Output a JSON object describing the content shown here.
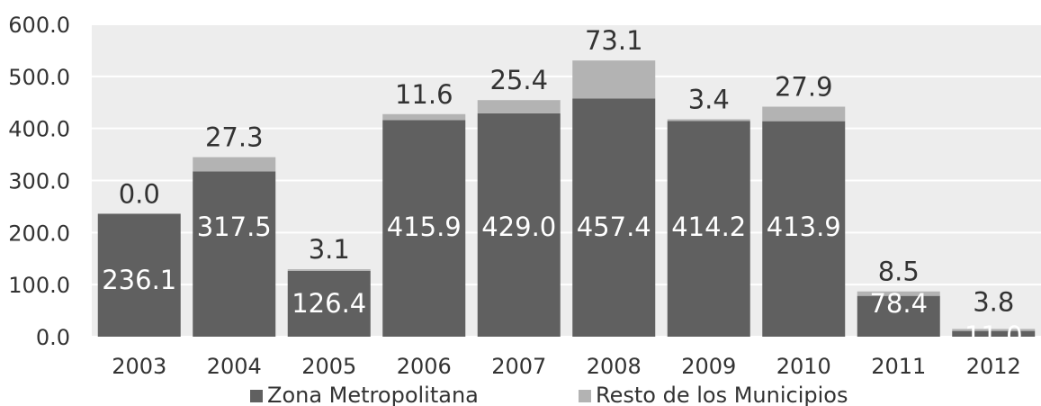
{
  "colors": {
    "plot_background": "#ededed",
    "series_zona": "#606060",
    "series_resto": "#b3b3b3",
    "grid": "#ffffff",
    "text": "#333333"
  },
  "chart_data": {
    "type": "bar",
    "stacked": true,
    "categories": [
      "2003",
      "2004",
      "2005",
      "2006",
      "2007",
      "2008",
      "2009",
      "2010",
      "2011",
      "2012"
    ],
    "series": [
      {
        "name": "Zona Metropolitana",
        "values": [
          236.1,
          317.5,
          126.4,
          415.9,
          429.0,
          457.4,
          414.2,
          413.9,
          78.4,
          11.0
        ]
      },
      {
        "name": "Resto de los Municipios",
        "values": [
          0.0,
          27.3,
          3.1,
          11.6,
          25.4,
          73.1,
          3.4,
          27.9,
          8.5,
          3.8
        ]
      }
    ],
    "ylim": [
      0,
      600
    ],
    "yticks": [
      "0.0",
      "100.0",
      "200.0",
      "300.0",
      "400.0",
      "500.0",
      "600.0"
    ],
    "grid": true,
    "legend_position": "bottom",
    "title": "",
    "xlabel": "",
    "ylabel": ""
  }
}
